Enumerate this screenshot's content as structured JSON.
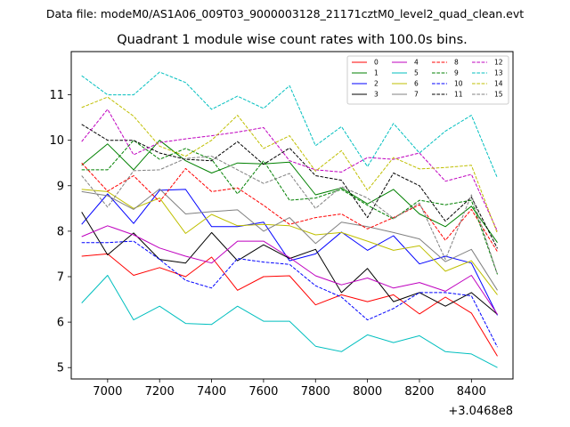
{
  "chart_data": {
    "type": "line",
    "suptitle": "Data file: modeM0/AS1A06_009T03_9000003128_21171cztM0_level2_quad_clean.evt",
    "title": "Quadrant 1 module wise count rates with 100.0s bins.",
    "xlabel": "",
    "ylabel": "",
    "x_offset_label": "+3.0468e8",
    "xlim": [
      6860,
      8560
    ],
    "ylim": [
      4.75,
      11.95
    ],
    "x_ticks": [
      7000,
      7200,
      7400,
      7600,
      7800,
      8000,
      8200,
      8400
    ],
    "y_ticks": [
      5,
      6,
      7,
      8,
      9,
      10,
      11
    ],
    "grid": false,
    "legend_position": "top-right",
    "legend_columns": 4,
    "x": [
      6900,
      7000,
      7100,
      7200,
      7300,
      7400,
      7500,
      7600,
      7700,
      7800,
      7900,
      8000,
      8100,
      8200,
      8300,
      8400,
      8500
    ],
    "series": [
      {
        "name": "0",
        "color": "#ff0000",
        "dash": "solid",
        "values": [
          7.45,
          7.5,
          7.03,
          7.2,
          7.0,
          7.43,
          6.7,
          7.0,
          7.02,
          6.38,
          6.6,
          6.45,
          6.6,
          6.18,
          6.55,
          6.2,
          5.25
        ]
      },
      {
        "name": "1",
        "color": "#008000",
        "dash": "solid",
        "values": [
          9.45,
          9.92,
          9.35,
          10.0,
          9.55,
          9.28,
          9.5,
          9.48,
          9.52,
          8.8,
          8.95,
          8.6,
          8.92,
          8.38,
          8.1,
          8.55,
          7.75
        ]
      },
      {
        "name": "2",
        "color": "#0000ff",
        "dash": "solid",
        "values": [
          8.15,
          8.82,
          8.17,
          8.9,
          8.92,
          8.1,
          8.1,
          8.2,
          7.35,
          7.5,
          7.98,
          7.58,
          7.9,
          7.28,
          7.45,
          7.3,
          6.15
        ]
      },
      {
        "name": "3",
        "color": "#000000",
        "dash": "solid",
        "values": [
          8.42,
          7.48,
          7.96,
          7.38,
          7.3,
          7.97,
          7.35,
          7.7,
          7.4,
          7.6,
          6.65,
          7.18,
          6.45,
          6.65,
          6.35,
          6.65,
          6.17
        ]
      },
      {
        "name": "4",
        "color": "#bf00bf",
        "dash": "solid",
        "values": [
          7.88,
          8.12,
          7.92,
          7.63,
          7.45,
          7.3,
          7.78,
          7.78,
          7.42,
          7.02,
          6.82,
          6.97,
          6.75,
          6.87,
          6.68,
          7.03,
          6.17
        ]
      },
      {
        "name": "5",
        "color": "#00bfbf",
        "dash": "solid",
        "values": [
          6.42,
          7.03,
          6.05,
          6.35,
          5.97,
          5.95,
          6.35,
          6.02,
          6.02,
          5.47,
          5.35,
          5.72,
          5.55,
          5.7,
          5.35,
          5.3,
          5.0
        ]
      },
      {
        "name": "6",
        "color": "#bfbf00",
        "dash": "solid",
        "values": [
          8.92,
          8.87,
          8.5,
          8.73,
          7.95,
          8.37,
          8.12,
          8.15,
          8.12,
          7.92,
          7.97,
          7.78,
          7.58,
          7.68,
          7.12,
          7.35,
          6.6
        ]
      },
      {
        "name": "7",
        "color": "#808080",
        "dash": "solid",
        "values": [
          8.87,
          8.78,
          8.48,
          8.93,
          8.38,
          8.43,
          8.47,
          8.0,
          8.3,
          7.73,
          8.2,
          8.1,
          7.97,
          7.83,
          7.33,
          7.6,
          6.7
        ]
      },
      {
        "name": "8",
        "color": "#ff0000",
        "dash": "dashed",
        "values": [
          9.5,
          8.88,
          9.22,
          8.65,
          9.38,
          8.87,
          8.95,
          8.57,
          8.15,
          8.3,
          8.38,
          8.05,
          8.3,
          8.58,
          7.8,
          8.48,
          7.55
        ]
      },
      {
        "name": "9",
        "color": "#008000",
        "dash": "dashed",
        "values": [
          9.35,
          9.35,
          10.0,
          9.58,
          9.82,
          9.58,
          8.82,
          9.55,
          8.68,
          8.73,
          8.92,
          8.57,
          8.27,
          8.68,
          8.58,
          8.68,
          7.05
        ]
      },
      {
        "name": "10",
        "color": "#0000ff",
        "dash": "dashed",
        "values": [
          7.75,
          7.75,
          7.78,
          7.38,
          6.92,
          6.75,
          7.4,
          7.32,
          7.27,
          6.8,
          6.55,
          6.05,
          6.3,
          6.65,
          6.65,
          6.58,
          5.45
        ]
      },
      {
        "name": "11",
        "color": "#000000",
        "dash": "dashed",
        "values": [
          10.35,
          10.0,
          10.0,
          9.72,
          9.58,
          9.55,
          9.97,
          9.47,
          9.83,
          9.22,
          9.12,
          8.3,
          9.28,
          9.0,
          8.22,
          8.75,
          7.62
        ]
      },
      {
        "name": "12",
        "color": "#bf00bf",
        "dash": "dashed",
        "values": [
          9.97,
          10.68,
          9.68,
          9.95,
          10.03,
          10.1,
          10.18,
          10.28,
          9.55,
          9.35,
          9.3,
          9.62,
          9.58,
          9.72,
          9.1,
          9.25,
          8.0
        ]
      },
      {
        "name": "13",
        "color": "#00bfbf",
        "dash": "dashed",
        "values": [
          11.42,
          11.0,
          11.0,
          11.5,
          11.27,
          10.68,
          10.97,
          10.7,
          11.2,
          9.88,
          10.3,
          9.42,
          10.37,
          9.72,
          10.2,
          10.55,
          9.17
        ]
      },
      {
        "name": "14",
        "color": "#bfbf00",
        "dash": "dashed",
        "values": [
          10.72,
          10.95,
          10.53,
          9.87,
          9.65,
          10.0,
          10.55,
          9.82,
          10.1,
          9.32,
          9.77,
          8.9,
          9.62,
          9.37,
          9.4,
          9.45,
          7.95
        ]
      },
      {
        "name": "15",
        "color": "#808080",
        "dash": "dashed",
        "values": [
          9.22,
          8.53,
          9.33,
          9.35,
          9.6,
          9.65,
          9.35,
          9.05,
          9.27,
          8.5,
          8.98,
          8.73,
          8.28,
          8.62,
          7.38,
          8.8,
          7.05
        ]
      }
    ]
  }
}
